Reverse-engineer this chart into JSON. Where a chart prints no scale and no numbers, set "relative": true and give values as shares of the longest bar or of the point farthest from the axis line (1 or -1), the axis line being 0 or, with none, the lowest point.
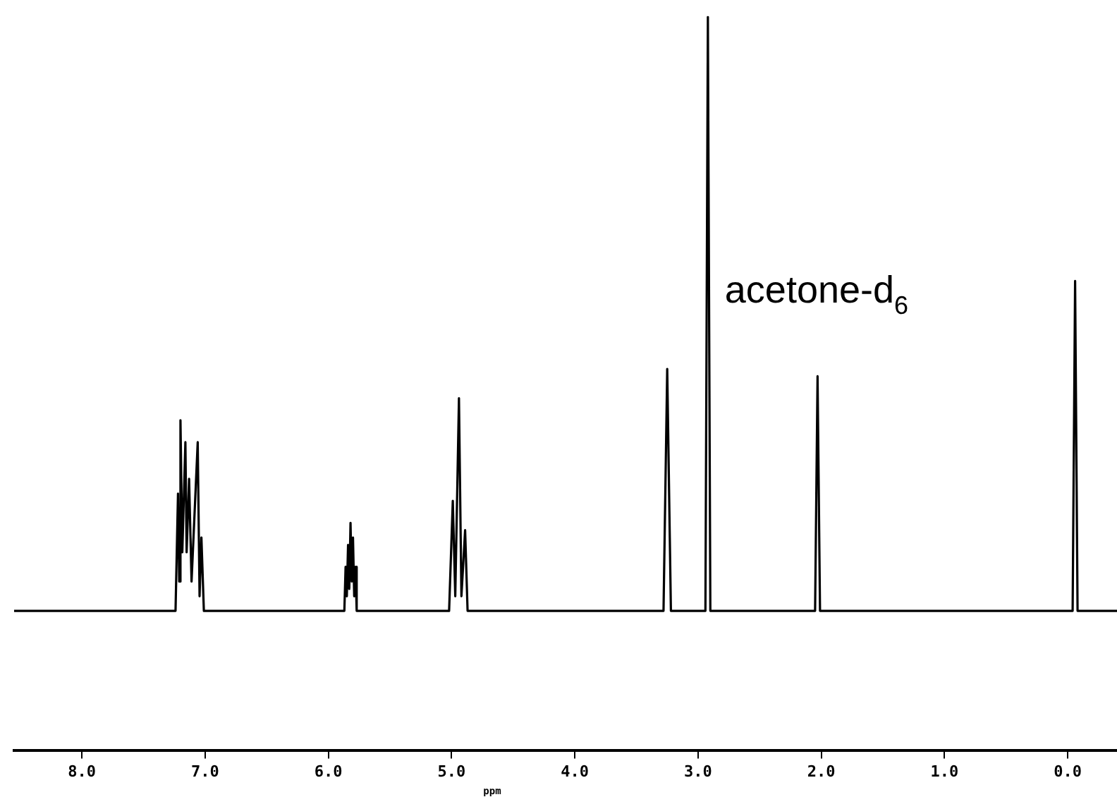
{
  "chart_data": {
    "type": "line",
    "xlabel": "ppm",
    "relative": true,
    "xlim": [
      8.55,
      -0.4
    ],
    "xticks": [
      {
        "value": 8,
        "label": "8.0"
      },
      {
        "value": 7,
        "label": "7.0"
      },
      {
        "value": 6,
        "label": "6.0"
      },
      {
        "value": 5,
        "label": "5.0"
      },
      {
        "value": 4,
        "label": "4.0"
      },
      {
        "value": 3,
        "label": "3.0"
      },
      {
        "value": 2,
        "label": "2.0"
      },
      {
        "value": 1,
        "label": "1.0"
      },
      {
        "value": 0,
        "label": "0.0"
      }
    ],
    "series": [
      {
        "color": "#000000",
        "x": [
          8.55,
          7.24,
          7.22,
          7.21,
          7.2,
          7.185,
          7.16,
          7.15,
          7.13,
          7.11,
          7.06,
          7.045,
          7.03,
          7.01,
          5.87,
          5.86,
          5.85,
          5.84,
          5.83,
          5.82,
          5.81,
          5.8,
          5.79,
          5.78,
          5.77,
          5.02,
          4.99,
          4.97,
          4.94,
          4.92,
          4.89,
          4.87,
          3.28,
          3.25,
          3.22,
          2.94,
          2.92,
          2.9,
          2.05,
          2.03,
          2.01,
          -0.04,
          -0.06,
          -0.08,
          -0.4
        ],
        "values": [
          0.19,
          0.19,
          0.35,
          0.23,
          0.45,
          0.27,
          0.42,
          0.27,
          0.37,
          0.23,
          0.42,
          0.21,
          0.29,
          0.19,
          0.19,
          0.25,
          0.21,
          0.28,
          0.22,
          0.31,
          0.23,
          0.29,
          0.21,
          0.25,
          0.19,
          0.19,
          0.34,
          0.21,
          0.48,
          0.21,
          0.3,
          0.19,
          0.19,
          0.52,
          0.19,
          0.19,
          1,
          0.19,
          0.19,
          0.51,
          0.19,
          0.19,
          0.64,
          0.19,
          0.19
        ]
      }
    ],
    "annotations": [
      {
        "text": "acetone-d$_{6}$",
        "x": 2.92,
        "y": 0.61
      }
    ],
    "grid": false,
    "legend": false,
    "marker": "none",
    "line_style": "solid"
  }
}
